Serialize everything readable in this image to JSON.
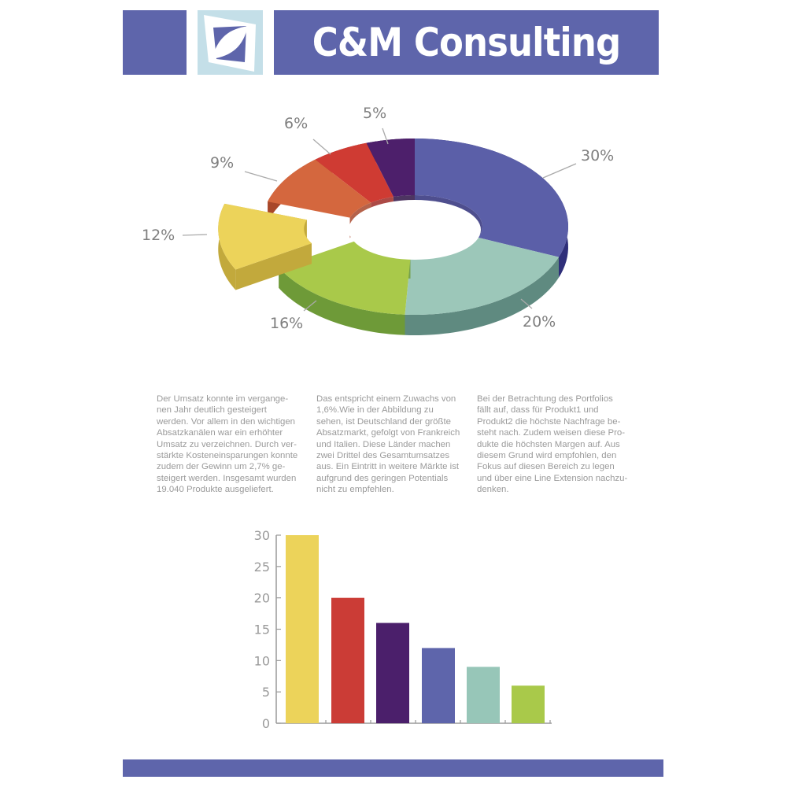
{
  "header": {
    "title": "C&M Consulting",
    "brand_color": "#5e65ab",
    "logo_bg_color": "#c4dfe8",
    "logo_icon": "leaf-logo-icon"
  },
  "body_text": {
    "columns": [
      "Der Umsatz konnte im vergange-\nnen Jahr deutlich gesteigert\nwerden. Vor allem in den wichtigen\nAbsatzkanälen war ein erhöhter\nUmsatz zu verzeichnen. Durch ver-\nstärkte Kosteneinsparungen konnte\nzudem der Gewinn um 2,7% ge-\nsteigert werden. Insgesamt wurden\n19.040 Produkte ausgeliefert.",
      "Das entspricht einem Zuwachs von\n1,6%.Wie in der Abbildung zu\nsehen, ist Deutschland der größte\nAbsatzmarkt, gefolgt von Frankreich\nund Italien. Diese Länder machen\nzwei Drittel des Gesamtumsatzes\naus. Ein Eintritt in weitere Märkte ist\naufgrund des geringen Potentials\nnicht zu empfehlen.",
      "Bei der Betrachtung des Portfolios\nfällt auf, dass für Produkt1 und\nProdukt2 die höchste Nachfrage be-\nsteht nach. Zudem weisen diese Pro-\ndukte die höchsten Margen auf. Aus\ndiesem Grund wird empfohlen, den\nFokus auf diesen Bereich zu legen\nund über eine Line Extension nachzu-\ndenken."
    ]
  },
  "chart_data": [
    {
      "type": "pie",
      "style": "3d-donut",
      "title": "",
      "slices": [
        {
          "label": "30%",
          "value": 30,
          "color": "#5b5fa8",
          "side_color": "#2f2f7a"
        },
        {
          "label": "20%",
          "value": 20,
          "color": "#9cc7b9",
          "side_color": "#5f8a80"
        },
        {
          "label": "16%",
          "value": 16,
          "color": "#a9c94a",
          "side_color": "#6e9a38"
        },
        {
          "label": "12%",
          "value": 12,
          "color": "#ecd35a",
          "side_color": "#c2a93c",
          "exploded": true
        },
        {
          "label": "9%",
          "value": 9,
          "color": "#d4673e",
          "side_color": "#a8472a"
        },
        {
          "label": "6%",
          "value": 6,
          "color": "#cf3b33",
          "side_color": "#9e2a26"
        },
        {
          "label": "5%",
          "value": 5,
          "color": "#4d1f6b",
          "side_color": "#2e1245"
        }
      ],
      "legend": "none",
      "label_color": "#7f7f7f"
    },
    {
      "type": "bar",
      "title": "",
      "xlabel": "",
      "ylabel": "",
      "categories": [
        "",
        "",
        "",
        "",
        "",
        ""
      ],
      "values": [
        30,
        20,
        16,
        12,
        9,
        6
      ],
      "colors": [
        "#ecd35a",
        "#cb3c36",
        "#4b1f6b",
        "#5e65ab",
        "#97c6b8",
        "#a9c94a"
      ],
      "ylim": [
        0,
        30
      ],
      "yticks": [
        "0",
        "5",
        "10",
        "15",
        "20",
        "25",
        "30"
      ],
      "grid": false,
      "axis_color": "#9a9a9a",
      "tick_label_color": "#9a9a9a"
    }
  ],
  "footer": {
    "bar_color": "#5e65ab"
  }
}
